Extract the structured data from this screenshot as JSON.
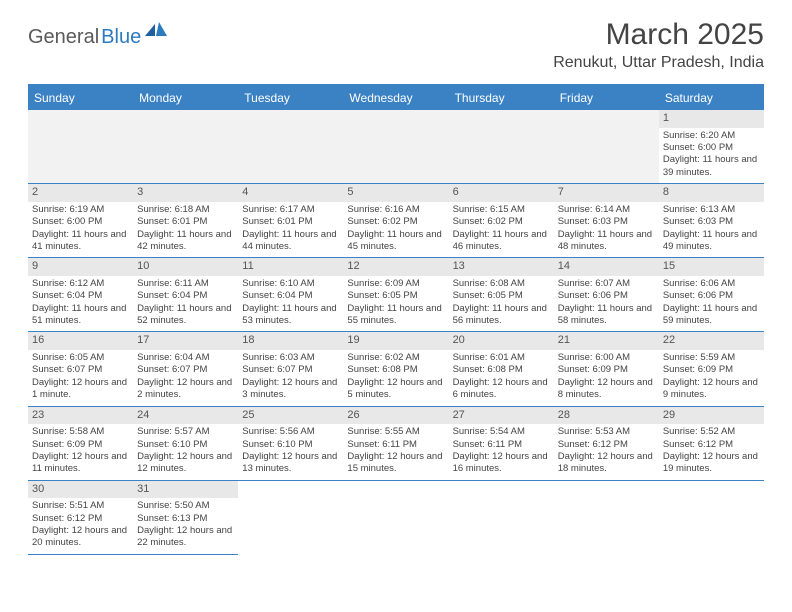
{
  "logo": {
    "text1": "General",
    "text2": "Blue"
  },
  "title": "March 2025",
  "location": "Renukut, Uttar Pradesh, India",
  "dayNames": [
    "Sunday",
    "Monday",
    "Tuesday",
    "Wednesday",
    "Thursday",
    "Friday",
    "Saturday"
  ],
  "colors": {
    "headerBlue": "#3b82c4",
    "bgGray": "#e8e8e8",
    "emptyGray": "#f2f2f2",
    "text": "#444444"
  },
  "weeks": [
    [
      null,
      null,
      null,
      null,
      null,
      null,
      {
        "d": "1",
        "sr": "6:20 AM",
        "ss": "6:00 PM",
        "dl": "11 hours and 39 minutes."
      }
    ],
    [
      {
        "d": "2",
        "sr": "6:19 AM",
        "ss": "6:00 PM",
        "dl": "11 hours and 41 minutes."
      },
      {
        "d": "3",
        "sr": "6:18 AM",
        "ss": "6:01 PM",
        "dl": "11 hours and 42 minutes."
      },
      {
        "d": "4",
        "sr": "6:17 AM",
        "ss": "6:01 PM",
        "dl": "11 hours and 44 minutes."
      },
      {
        "d": "5",
        "sr": "6:16 AM",
        "ss": "6:02 PM",
        "dl": "11 hours and 45 minutes."
      },
      {
        "d": "6",
        "sr": "6:15 AM",
        "ss": "6:02 PM",
        "dl": "11 hours and 46 minutes."
      },
      {
        "d": "7",
        "sr": "6:14 AM",
        "ss": "6:03 PM",
        "dl": "11 hours and 48 minutes."
      },
      {
        "d": "8",
        "sr": "6:13 AM",
        "ss": "6:03 PM",
        "dl": "11 hours and 49 minutes."
      }
    ],
    [
      {
        "d": "9",
        "sr": "6:12 AM",
        "ss": "6:04 PM",
        "dl": "11 hours and 51 minutes."
      },
      {
        "d": "10",
        "sr": "6:11 AM",
        "ss": "6:04 PM",
        "dl": "11 hours and 52 minutes."
      },
      {
        "d": "11",
        "sr": "6:10 AM",
        "ss": "6:04 PM",
        "dl": "11 hours and 53 minutes."
      },
      {
        "d": "12",
        "sr": "6:09 AM",
        "ss": "6:05 PM",
        "dl": "11 hours and 55 minutes."
      },
      {
        "d": "13",
        "sr": "6:08 AM",
        "ss": "6:05 PM",
        "dl": "11 hours and 56 minutes."
      },
      {
        "d": "14",
        "sr": "6:07 AM",
        "ss": "6:06 PM",
        "dl": "11 hours and 58 minutes."
      },
      {
        "d": "15",
        "sr": "6:06 AM",
        "ss": "6:06 PM",
        "dl": "11 hours and 59 minutes."
      }
    ],
    [
      {
        "d": "16",
        "sr": "6:05 AM",
        "ss": "6:07 PM",
        "dl": "12 hours and 1 minute."
      },
      {
        "d": "17",
        "sr": "6:04 AM",
        "ss": "6:07 PM",
        "dl": "12 hours and 2 minutes."
      },
      {
        "d": "18",
        "sr": "6:03 AM",
        "ss": "6:07 PM",
        "dl": "12 hours and 3 minutes."
      },
      {
        "d": "19",
        "sr": "6:02 AM",
        "ss": "6:08 PM",
        "dl": "12 hours and 5 minutes."
      },
      {
        "d": "20",
        "sr": "6:01 AM",
        "ss": "6:08 PM",
        "dl": "12 hours and 6 minutes."
      },
      {
        "d": "21",
        "sr": "6:00 AM",
        "ss": "6:09 PM",
        "dl": "12 hours and 8 minutes."
      },
      {
        "d": "22",
        "sr": "5:59 AM",
        "ss": "6:09 PM",
        "dl": "12 hours and 9 minutes."
      }
    ],
    [
      {
        "d": "23",
        "sr": "5:58 AM",
        "ss": "6:09 PM",
        "dl": "12 hours and 11 minutes."
      },
      {
        "d": "24",
        "sr": "5:57 AM",
        "ss": "6:10 PM",
        "dl": "12 hours and 12 minutes."
      },
      {
        "d": "25",
        "sr": "5:56 AM",
        "ss": "6:10 PM",
        "dl": "12 hours and 13 minutes."
      },
      {
        "d": "26",
        "sr": "5:55 AM",
        "ss": "6:11 PM",
        "dl": "12 hours and 15 minutes."
      },
      {
        "d": "27",
        "sr": "5:54 AM",
        "ss": "6:11 PM",
        "dl": "12 hours and 16 minutes."
      },
      {
        "d": "28",
        "sr": "5:53 AM",
        "ss": "6:12 PM",
        "dl": "12 hours and 18 minutes."
      },
      {
        "d": "29",
        "sr": "5:52 AM",
        "ss": "6:12 PM",
        "dl": "12 hours and 19 minutes."
      }
    ],
    [
      {
        "d": "30",
        "sr": "5:51 AM",
        "ss": "6:12 PM",
        "dl": "12 hours and 20 minutes."
      },
      {
        "d": "31",
        "sr": "5:50 AM",
        "ss": "6:13 PM",
        "dl": "12 hours and 22 minutes."
      },
      null,
      null,
      null,
      null,
      null
    ]
  ],
  "labels": {
    "sunrise": "Sunrise:",
    "sunset": "Sunset:",
    "daylight": "Daylight:"
  }
}
